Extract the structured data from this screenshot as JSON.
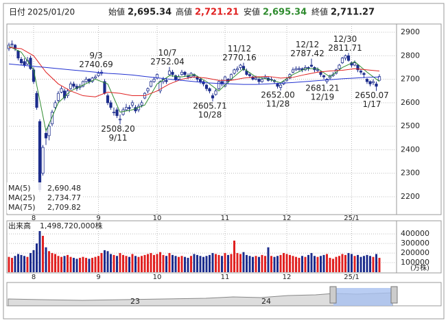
{
  "header": {
    "date_label": "日付",
    "date": "2025/01/20",
    "open_label": "始値",
    "open": "2,695.34",
    "high_label": "高値",
    "high": "2,721.21",
    "low_label": "安値",
    "low": "2,695.34",
    "close_label": "終値",
    "close": "2,711.27"
  },
  "chart_data": {
    "type": "candlestick",
    "grid": true,
    "categories": [
      null,
      null,
      null,
      null,
      null,
      null,
      null,
      null,
      "8",
      null,
      null,
      null,
      null,
      null,
      null,
      null,
      null,
      null,
      null,
      null,
      null,
      null,
      null,
      null,
      null,
      null,
      null,
      null,
      null,
      "9",
      null,
      null,
      null,
      null,
      null,
      null,
      null,
      null,
      null,
      null,
      null,
      null,
      null,
      null,
      null,
      null,
      null,
      null,
      "10",
      null,
      null,
      null,
      null,
      null,
      null,
      null,
      null,
      null,
      null,
      null,
      null,
      null,
      null,
      null,
      null,
      null,
      null,
      null,
      null,
      null,
      "11",
      null,
      null,
      null,
      null,
      null,
      null,
      null,
      null,
      null,
      null,
      null,
      null,
      null,
      null,
      null,
      null,
      null,
      null,
      null,
      "12",
      null,
      null,
      null,
      null,
      null,
      null,
      null,
      null,
      null,
      null,
      null,
      null,
      null,
      null,
      null,
      null,
      null,
      null,
      null,
      null,
      "25/1",
      null,
      null,
      null,
      null,
      null,
      null,
      null,
      null,
      null
    ],
    "ohlc": [
      [
        2830,
        2855,
        2820,
        2845
      ],
      [
        2850,
        2865,
        2835,
        2850
      ],
      [
        2845,
        2850,
        2820,
        2830
      ],
      [
        2820,
        2825,
        2780,
        2790
      ],
      [
        2785,
        2795,
        2760,
        2770
      ],
      [
        2775,
        2790,
        2750,
        2760
      ],
      [
        2765,
        2795,
        2760,
        2780
      ],
      [
        2790,
        2800,
        2740,
        2745
      ],
      [
        2740,
        2750,
        2680,
        2690
      ],
      [
        2640,
        2650,
        2570,
        2580
      ],
      [
        2520,
        2530,
        2220,
        2230
      ],
      [
        2300,
        2420,
        2290,
        2410
      ],
      [
        2470,
        2490,
        2420,
        2450
      ],
      [
        2460,
        2510,
        2440,
        2500
      ],
      [
        2510,
        2570,
        2500,
        2560
      ],
      [
        2580,
        2610,
        2570,
        2600
      ],
      [
        2610,
        2650,
        2600,
        2640
      ],
      [
        2645,
        2670,
        2640,
        2660
      ],
      [
        2650,
        2660,
        2610,
        2620
      ],
      [
        2630,
        2660,
        2620,
        2650
      ],
      [
        2660,
        2690,
        2655,
        2680
      ],
      [
        2680,
        2690,
        2660,
        2670
      ],
      [
        2670,
        2680,
        2650,
        2660
      ],
      [
        2665,
        2680,
        2655,
        2670
      ],
      [
        2670,
        2695,
        2665,
        2690
      ],
      [
        2690,
        2710,
        2685,
        2700
      ],
      [
        2700,
        2705,
        2680,
        2690
      ],
      [
        2690,
        2710,
        2685,
        2705
      ],
      [
        2705,
        2720,
        2700,
        2710
      ],
      [
        2715,
        2735,
        2710,
        2725
      ],
      [
        2725,
        2740.69,
        2715,
        2730
      ],
      [
        2690,
        2700,
        2635,
        2640
      ],
      [
        2630,
        2640,
        2590,
        2600
      ],
      [
        2600,
        2610,
        2570,
        2580
      ],
      [
        2560,
        2580,
        2545,
        2560
      ],
      [
        2570,
        2580,
        2535,
        2545
      ],
      [
        2530,
        2550,
        2508.2,
        2530
      ],
      [
        2550,
        2580,
        2545,
        2570
      ],
      [
        2570,
        2595,
        2565,
        2580
      ],
      [
        2580,
        2590,
        2560,
        2575
      ],
      [
        2590,
        2610,
        2580,
        2600
      ],
      [
        2580,
        2590,
        2555,
        2565
      ],
      [
        2570,
        2595,
        2560,
        2585
      ],
      [
        2590,
        2610,
        2580,
        2600
      ],
      [
        2620,
        2645,
        2615,
        2640
      ],
      [
        2650,
        2665,
        2640,
        2660
      ],
      [
        2670,
        2695,
        2665,
        2690
      ],
      [
        2690,
        2710,
        2685,
        2700
      ],
      [
        2705,
        2725,
        2700,
        2720
      ],
      [
        2650,
        2695,
        2640,
        2690
      ],
      [
        2690,
        2710,
        2680,
        2700
      ],
      [
        2695,
        2705,
        2680,
        2690
      ],
      [
        2720,
        2752.04,
        2715,
        2735
      ],
      [
        2730,
        2740,
        2710,
        2720
      ],
      [
        2715,
        2720,
        2690,
        2700
      ],
      [
        2700,
        2720,
        2695,
        2710
      ],
      [
        2720,
        2740,
        2715,
        2730
      ],
      [
        2730,
        2735,
        2710,
        2720
      ],
      [
        2715,
        2725,
        2700,
        2710
      ],
      [
        2710,
        2730,
        2705,
        2725
      ],
      [
        2720,
        2725,
        2705,
        2715
      ],
      [
        2710,
        2715,
        2690,
        2700
      ],
      [
        2700,
        2705,
        2680,
        2690
      ],
      [
        2690,
        2695,
        2670,
        2680
      ],
      [
        2675,
        2680,
        2650,
        2660
      ],
      [
        2660,
        2665,
        2640,
        2650
      ],
      [
        2630,
        2640,
        2605.71,
        2620
      ],
      [
        2635,
        2660,
        2630,
        2650
      ],
      [
        2660,
        2695,
        2655,
        2690
      ],
      [
        2690,
        2700,
        2670,
        2680
      ],
      [
        2670,
        2715,
        2665,
        2710
      ],
      [
        2700,
        2705,
        2680,
        2690
      ],
      [
        2700,
        2725,
        2695,
        2720
      ],
      [
        2725,
        2745,
        2720,
        2740
      ],
      [
        2740,
        2755,
        2730,
        2745
      ],
      [
        2750,
        2765,
        2740,
        2760
      ],
      [
        2755,
        2770.16,
        2735,
        2740
      ],
      [
        2735,
        2745,
        2715,
        2720
      ],
      [
        2720,
        2730,
        2705,
        2715
      ],
      [
        2710,
        2715,
        2695,
        2700
      ],
      [
        2700,
        2715,
        2695,
        2705
      ],
      [
        2700,
        2705,
        2680,
        2690
      ],
      [
        2690,
        2710,
        2685,
        2700
      ],
      [
        2705,
        2720,
        2700,
        2710
      ],
      [
        2705,
        2710,
        2690,
        2695
      ],
      [
        2700,
        2710,
        2690,
        2700
      ],
      [
        2695,
        2700,
        2680,
        2690
      ],
      [
        2680,
        2685,
        2660,
        2670
      ],
      [
        2665,
        2685,
        2652,
        2675
      ],
      [
        2680,
        2695,
        2675,
        2690
      ],
      [
        2695,
        2710,
        2690,
        2700
      ],
      [
        2705,
        2725,
        2700,
        2720
      ],
      [
        2730,
        2750,
        2725,
        2740
      ],
      [
        2740,
        2755,
        2735,
        2745
      ],
      [
        2745,
        2755,
        2735,
        2745
      ],
      [
        2745,
        2750,
        2730,
        2740
      ],
      [
        2740,
        2760,
        2735,
        2750
      ],
      [
        2750,
        2755,
        2735,
        2745
      ],
      [
        2760,
        2787.42,
        2750,
        2755
      ],
      [
        2750,
        2755,
        2730,
        2740
      ],
      [
        2740,
        2750,
        2730,
        2740
      ],
      [
        2730,
        2735,
        2710,
        2720
      ],
      [
        2715,
        2720,
        2700,
        2710
      ],
      [
        2690,
        2705,
        2681.21,
        2700
      ],
      [
        2705,
        2720,
        2700,
        2715
      ],
      [
        2715,
        2730,
        2710,
        2720
      ],
      [
        2725,
        2745,
        2720,
        2740
      ],
      [
        2745,
        2765,
        2740,
        2760
      ],
      [
        2770,
        2795,
        2765,
        2790
      ],
      [
        2790,
        2805,
        2780,
        2800
      ],
      [
        2800,
        2811.71,
        2775,
        2780
      ],
      [
        2770,
        2775,
        2750,
        2760
      ],
      [
        2760,
        2780,
        2755,
        2770
      ],
      [
        2760,
        2765,
        2730,
        2740
      ],
      [
        2735,
        2745,
        2720,
        2730
      ],
      [
        2725,
        2730,
        2705,
        2720
      ],
      [
        2700,
        2705,
        2680,
        2690
      ],
      [
        2690,
        2695,
        2670,
        2680
      ],
      [
        2685,
        2700,
        2675,
        2690
      ],
      [
        2680,
        2690,
        2650.07,
        2670
      ],
      [
        2695.34,
        2721.21,
        2695.34,
        2711.27
      ]
    ],
    "ylim": [
      2124,
      2935
    ],
    "yticks": [
      2200,
      2300,
      2400,
      2500,
      2600,
      2700,
      2800,
      2900
    ],
    "up_color": "#ffffff",
    "down_color": "#1c2c8c",
    "line_color": "#1c2c8c",
    "series": [
      {
        "name": "MA(5)",
        "color": "#2e8b2e",
        "legend_value": "2,690.48",
        "x": [
          0,
          4,
          8,
          12,
          16,
          20,
          24,
          28,
          32,
          36,
          40,
          44,
          48,
          52,
          56,
          60,
          64,
          68,
          72,
          76,
          80,
          84,
          88,
          92,
          96,
          100,
          104,
          108,
          112,
          116,
          120
        ],
        "values": [
          2840,
          2815,
          2740,
          2480,
          2600,
          2650,
          2675,
          2700,
          2680,
          2560,
          2570,
          2590,
          2680,
          2715,
          2710,
          2720,
          2690,
          2650,
          2700,
          2745,
          2710,
          2700,
          2685,
          2720,
          2745,
          2745,
          2710,
          2750,
          2775,
          2730,
          2690.48
        ]
      },
      {
        "name": "MA(25)",
        "color": "#e02020",
        "legend_value": "2,734.77",
        "x": [
          0,
          4,
          8,
          12,
          16,
          20,
          24,
          28,
          32,
          36,
          40,
          44,
          48,
          52,
          56,
          60,
          64,
          68,
          72,
          76,
          80,
          84,
          88,
          92,
          96,
          100,
          104,
          108,
          112,
          116,
          120
        ],
        "values": [
          2835,
          2830,
          2800,
          2730,
          2680,
          2650,
          2630,
          2625,
          2645,
          2640,
          2630,
          2630,
          2650,
          2680,
          2700,
          2710,
          2705,
          2695,
          2695,
          2705,
          2710,
          2712,
          2705,
          2708,
          2720,
          2730,
          2735,
          2738,
          2745,
          2740,
          2734.77
        ]
      },
      {
        "name": "MA(75)",
        "color": "#2030d0",
        "legend_value": "2,709.82",
        "x": [
          0,
          4,
          8,
          12,
          16,
          20,
          24,
          28,
          32,
          36,
          40,
          44,
          48,
          52,
          56,
          60,
          64,
          68,
          72,
          76,
          80,
          84,
          88,
          92,
          96,
          100,
          104,
          108,
          112,
          116,
          120
        ],
        "values": [
          2765,
          2760,
          2755,
          2750,
          2745,
          2740,
          2735,
          2730,
          2725,
          2722,
          2718,
          2712,
          2706,
          2700,
          2695,
          2690,
          2685,
          2682,
          2680,
          2678,
          2678,
          2680,
          2683,
          2686,
          2690,
          2694,
          2698,
          2702,
          2705,
          2708,
          2709.82
        ]
      }
    ],
    "annotations": [
      {
        "date": "9/3",
        "price": 2740.69
      },
      {
        "date": "9/11",
        "price": {
          "value": 2508.2,
          "label": "2508.20"
        }
      },
      {
        "date": "10/7",
        "price": 2752.04
      },
      {
        "date": "10/28",
        "price": 2605.71
      },
      {
        "date": "11/12",
        "price": 2770.16
      },
      {
        "date": "11/28",
        "price": {
          "value": 2652,
          "label": "2652.00"
        }
      },
      {
        "date": "12/12",
        "price": 2787.42
      },
      {
        "date": "12/19",
        "price": 2681.21
      },
      {
        "date": "12/30",
        "price": 2811.71
      },
      {
        "date": "1/17",
        "price": 2650.07
      }
    ],
    "volume": {
      "title": "出来高",
      "total": "1,498,720,000株",
      "unit": "(万株)",
      "ylim": [
        0,
        530000
      ],
      "yticks": [
        100000,
        200000,
        300000,
        400000
      ],
      "up_color": "#e02020",
      "down_color": "#1c2c8c",
      "values": [
        160000,
        150000,
        170000,
        190000,
        180000,
        170000,
        160000,
        200000,
        230000,
        300000,
        440000,
        380000,
        260000,
        220000,
        200000,
        190000,
        170000,
        160000,
        170000,
        180000,
        160000,
        150000,
        140000,
        150000,
        160000,
        150000,
        140000,
        150000,
        160000,
        170000,
        200000,
        230000,
        220000,
        190000,
        180000,
        170000,
        200000,
        180000,
        170000,
        160000,
        190000,
        170000,
        160000,
        170000,
        180000,
        190000,
        200000,
        180000,
        190000,
        210000,
        180000,
        170000,
        200000,
        180000,
        170000,
        160000,
        170000,
        160000,
        150000,
        170000,
        190000,
        180000,
        170000,
        160000,
        170000,
        180000,
        200000,
        190000,
        180000,
        170000,
        200000,
        180000,
        190000,
        330000,
        200000,
        190000,
        210000,
        180000,
        170000,
        160000,
        170000,
        160000,
        180000,
        170000,
        260000,
        170000,
        160000,
        170000,
        180000,
        200000,
        190000,
        180000,
        170000,
        160000,
        150000,
        170000,
        160000,
        180000,
        200000,
        170000,
        160000,
        170000,
        180000,
        190000,
        150000,
        140000,
        160000,
        170000,
        190000,
        180000,
        200000,
        190000,
        170000,
        180000,
        160000,
        170000,
        180000,
        170000,
        160000,
        190000,
        149872
      ]
    },
    "navigator": {
      "labels": [
        "23",
        "24"
      ]
    }
  }
}
